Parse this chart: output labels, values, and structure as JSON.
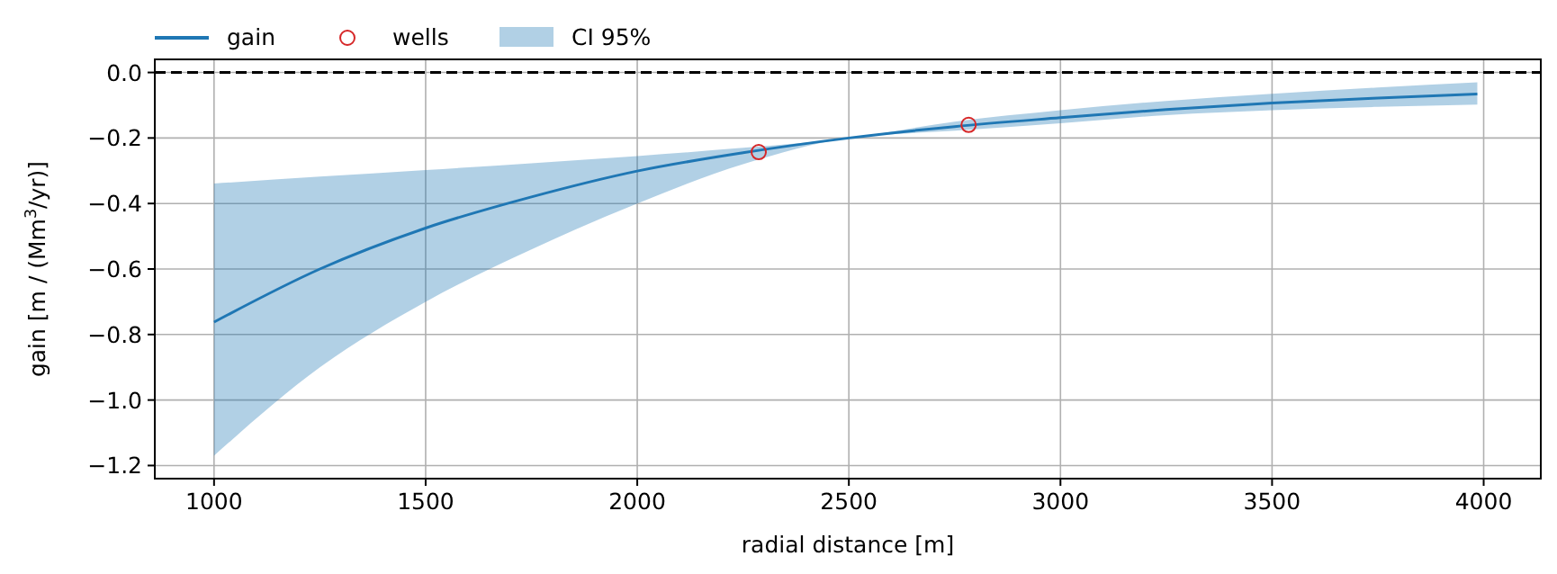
{
  "chart_data": {
    "type": "line",
    "xlabel": "radial distance [m]",
    "ylabel": "gain [m / (Mm$^{3}$/yr)]",
    "xlim": [
      860,
      4135
    ],
    "ylim": [
      -1.24,
      0.04
    ],
    "xticks": [
      1000,
      1500,
      2000,
      2500,
      3000,
      3500,
      4000
    ],
    "yticks": [
      {
        "value": 0,
        "label": "0.0"
      },
      {
        "value": -0.2,
        "label": "−0.2"
      },
      {
        "value": -0.4,
        "label": "−0.4"
      },
      {
        "value": -0.6,
        "label": "−0.6"
      },
      {
        "value": -0.8,
        "label": "−0.8"
      },
      {
        "value": -1.0,
        "label": "−1.0"
      },
      {
        "value": -1.2,
        "label": "−1.2"
      }
    ],
    "grid": true,
    "legend": "top left",
    "line_style": "solid",
    "series": [
      {
        "name": "gain",
        "color": "#1f77b4",
        "x": [
          1000,
          1250,
          1500,
          1750,
          2000,
          2250,
          2500,
          2750,
          3000,
          3250,
          3500,
          3750,
          3985
        ],
        "values": [
          -0.762,
          -0.6,
          -0.475,
          -0.38,
          -0.301,
          -0.245,
          -0.2,
          -0.165,
          -0.138,
          -0.113,
          -0.093,
          -0.078,
          -0.066
        ],
        "lower": [
          -1.17,
          -0.9,
          -0.7,
          -0.54,
          -0.4,
          -0.28,
          -0.2,
          -0.178,
          -0.155,
          -0.13,
          -0.115,
          -0.105,
          -0.098
        ],
        "upper": [
          -0.339,
          -0.318,
          -0.298,
          -0.277,
          -0.255,
          -0.23,
          -0.2,
          -0.15,
          -0.115,
          -0.087,
          -0.065,
          -0.046,
          -0.03
        ]
      },
      {
        "name": "wells",
        "type": "scatter",
        "marker": "circle",
        "color": "#d62728",
        "x": [
          2287,
          2783
        ],
        "values": [
          -0.243,
          -0.16
        ]
      }
    ],
    "annotations": [
      "CI 95%"
    ],
    "ref_lines": [
      {
        "axis": "y",
        "value": 0,
        "color": "#000000",
        "line_style": "dashed"
      }
    ]
  }
}
